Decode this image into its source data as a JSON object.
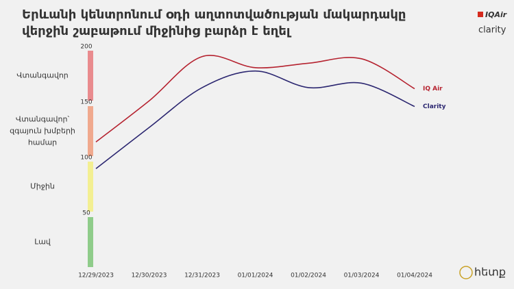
{
  "chart_data": {
    "type": "line",
    "title": [
      "Երևանի կենտրոնում օդի աղտոտվածության մակարդակը",
      "վերջին շաբաթում միջինից բարձր է եղել"
    ],
    "categories": [
      "12/29/2023",
      "12/30/2023",
      "12/31/2023",
      "01/01/2024",
      "01/02/2024",
      "01/03/2024",
      "01/04/2024"
    ],
    "series": [
      {
        "name": "IQ Air",
        "color": "#b5222f",
        "values": [
          114,
          151,
          191,
          181,
          185,
          189,
          162
        ]
      },
      {
        "name": "Clarity",
        "color": "#2b2670",
        "values": [
          90,
          127,
          163,
          178,
          163,
          167,
          146
        ]
      }
    ],
    "ylim": [
      0,
      200
    ],
    "yticks": [
      50,
      100,
      150,
      200
    ],
    "bands": [
      {
        "label": "Լավ",
        "color": "#8fcc8a",
        "range": [
          0,
          50
        ]
      },
      {
        "label": "Միջին",
        "color": "#f3ef92",
        "range": [
          50,
          100
        ]
      },
      {
        "label": "Վտանգավոր՝ զգայուն խմբերի համար",
        "color": "#f0a98e",
        "range": [
          100,
          150
        ]
      },
      {
        "label": "Վտանգավոր",
        "color": "#e98b8e",
        "range": [
          150,
          200
        ]
      }
    ],
    "logos": [
      "IQAir",
      "clarity",
      "հետք"
    ]
  }
}
